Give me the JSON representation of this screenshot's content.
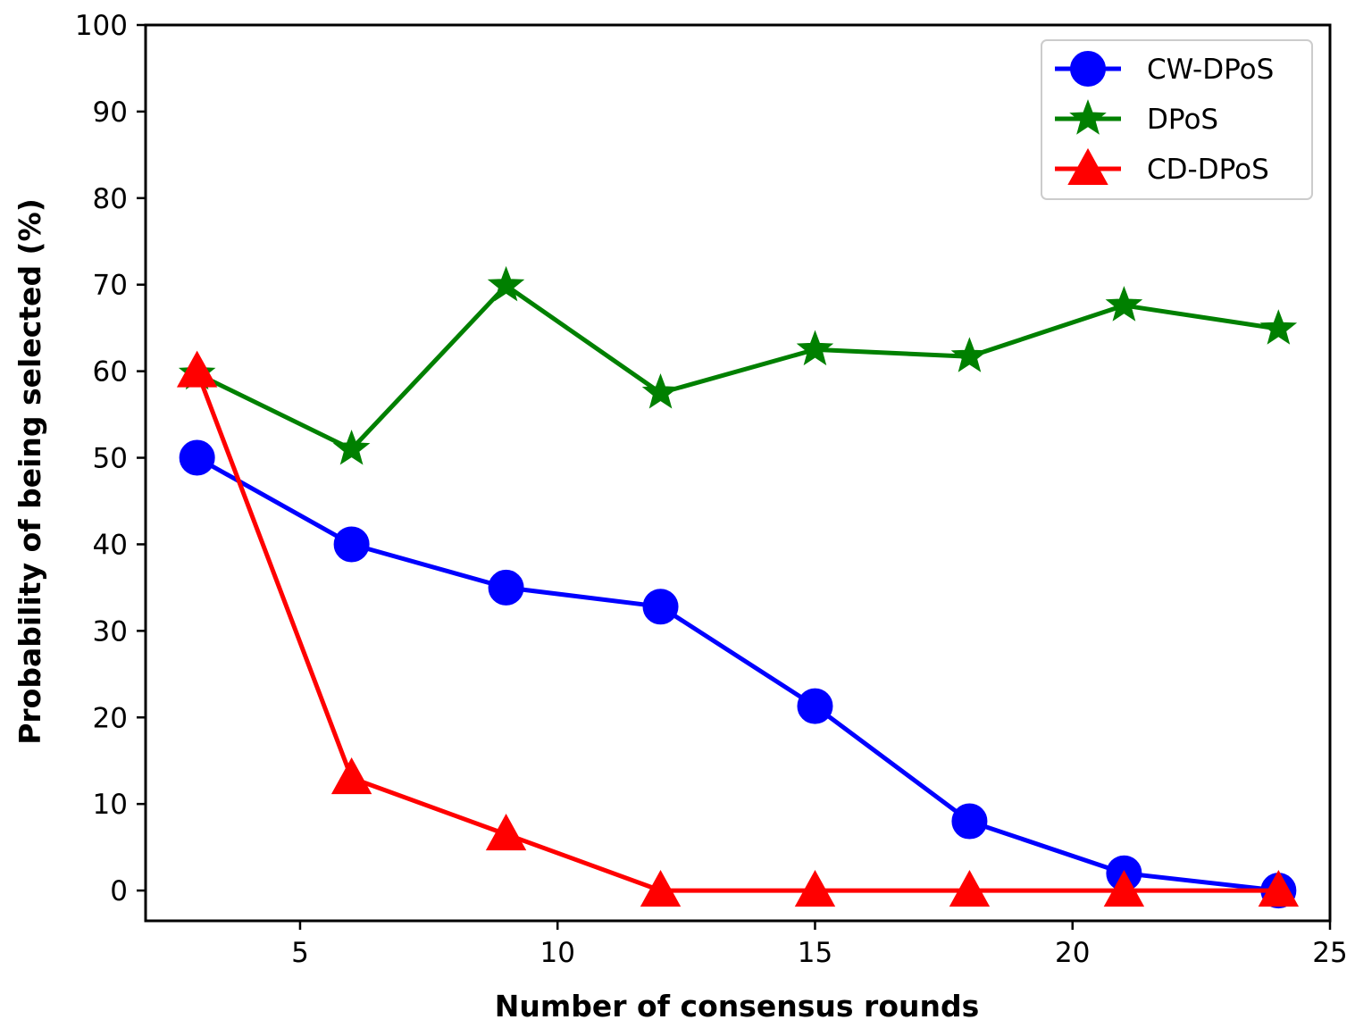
{
  "chart_data": {
    "type": "line",
    "title": "",
    "xlabel": "Number of consensus rounds",
    "ylabel": "Probability of being selected (%)",
    "xlim": [
      2,
      25
    ],
    "ylim": [
      -3.5,
      100
    ],
    "xticks": [
      5,
      10,
      15,
      20,
      25
    ],
    "yticks": [
      0,
      10,
      20,
      30,
      40,
      50,
      60,
      70,
      80,
      90,
      100
    ],
    "x": [
      3,
      6,
      9,
      12,
      15,
      18,
      21,
      24
    ],
    "grid": false,
    "legend_position": "top-right",
    "series": [
      {
        "name": "CW-DPoS",
        "color": "#0000ff",
        "marker": "circle",
        "values": [
          50,
          40,
          35,
          32.8,
          21.3,
          8,
          2,
          0
        ]
      },
      {
        "name": "DPoS",
        "color": "#008000",
        "marker": "star",
        "values": [
          59.7,
          51,
          69.9,
          57.5,
          62.5,
          61.7,
          67.6,
          64.9
        ]
      },
      {
        "name": "CD-DPoS",
        "color": "#ff0000",
        "marker": "triangle",
        "values": [
          60,
          13,
          6.5,
          0,
          0,
          0,
          0,
          0
        ]
      }
    ]
  }
}
